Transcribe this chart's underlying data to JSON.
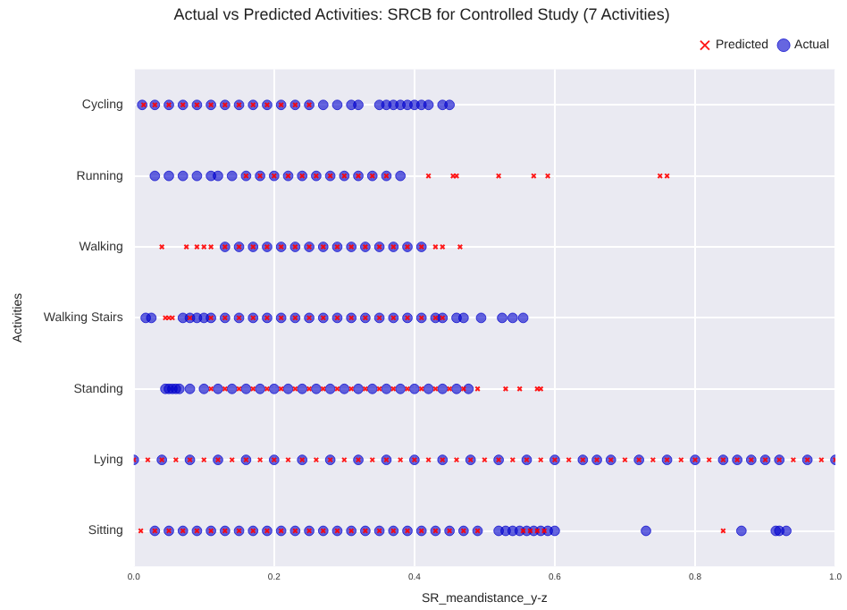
{
  "chart_data": {
    "type": "scatter",
    "title": "Actual vs Predicted Activities: SRCB for Controlled Study (7 Activities)",
    "xlabel": "SR_meandistance_y-z",
    "ylabel": "Activities",
    "categories": [
      "Cycling",
      "Running",
      "Walking",
      "Walking Stairs",
      "Standing",
      "Lying",
      "Sitting"
    ],
    "xlim": [
      0,
      1
    ],
    "xticks": [
      {
        "value": 0,
        "label": "0.0"
      },
      {
        "value": 0.2,
        "label": "0.2"
      },
      {
        "value": 0.4,
        "label": "0.4"
      },
      {
        "value": 0.6,
        "label": "0.6"
      },
      {
        "value": 0.8,
        "label": "0.8"
      },
      {
        "value": 1,
        "label": "1.0"
      }
    ],
    "grid": true,
    "legend": "top right",
    "orientation": "horizontal",
    "series": [
      {
        "name": "Actual",
        "color": "#0000cc",
        "marker": "circle",
        "values": [
          0.012,
          0.03,
          0.05,
          0.07,
          0.09,
          0.11,
          0.13,
          0.15,
          0.17,
          0.19,
          0.21,
          0.23,
          0.25,
          0.27,
          0.29,
          0.31,
          0.32,
          0.35,
          0.36,
          0.37,
          0.38,
          0.39,
          0.4,
          0.41,
          0.42,
          0.44,
          0.45,
          0.03,
          0.05,
          0.07,
          0.09,
          0.11,
          0.12,
          0.14,
          0.16,
          0.18,
          0.2,
          0.22,
          0.24,
          0.26,
          0.28,
          0.3,
          0.32,
          0.34,
          0.36,
          0.38,
          0.13,
          0.15,
          0.17,
          0.19,
          0.21,
          0.23,
          0.25,
          0.27,
          0.29,
          0.31,
          0.33,
          0.35,
          0.37,
          0.39,
          0.41,
          0.017,
          0.025,
          0.07,
          0.08,
          0.09,
          0.1,
          0.11,
          0.13,
          0.15,
          0.17,
          0.19,
          0.21,
          0.23,
          0.25,
          0.27,
          0.29,
          0.31,
          0.33,
          0.35,
          0.37,
          0.39,
          0.41,
          0.43,
          0.44,
          0.46,
          0.47,
          0.495,
          0.525,
          0.54,
          0.555,
          0.045,
          0.05,
          0.055,
          0.06,
          0.065,
          0.08,
          0.1,
          0.12,
          0.14,
          0.16,
          0.18,
          0.2,
          0.22,
          0.24,
          0.26,
          0.28,
          0.3,
          0.32,
          0.34,
          0.36,
          0.38,
          0.4,
          0.42,
          0.44,
          0.46,
          0.477,
          0,
          0.04,
          0.08,
          0.12,
          0.16,
          0.2,
          0.24,
          0.28,
          0.32,
          0.36,
          0.4,
          0.44,
          0.48,
          0.52,
          0.56,
          0.6,
          0.64,
          0.66,
          0.68,
          0.72,
          0.76,
          0.8,
          0.84,
          0.86,
          0.88,
          0.9,
          0.92,
          0.96,
          1,
          0.03,
          0.05,
          0.07,
          0.09,
          0.11,
          0.13,
          0.15,
          0.17,
          0.19,
          0.21,
          0.23,
          0.25,
          0.27,
          0.29,
          0.31,
          0.33,
          0.35,
          0.37,
          0.39,
          0.41,
          0.43,
          0.45,
          0.47,
          0.49,
          0.52,
          0.53,
          0.54,
          0.55,
          0.56,
          0.57,
          0.58,
          0.59,
          0.6,
          0.73,
          0.866,
          0.915,
          0.92,
          0.93
        ],
        "x": [
          "Cycling",
          "Cycling",
          "Cycling",
          "Cycling",
          "Cycling",
          "Cycling",
          "Cycling",
          "Cycling",
          "Cycling",
          "Cycling",
          "Cycling",
          "Cycling",
          "Cycling",
          "Cycling",
          "Cycling",
          "Cycling",
          "Cycling",
          "Cycling",
          "Cycling",
          "Cycling",
          "Cycling",
          "Cycling",
          "Cycling",
          "Cycling",
          "Cycling",
          "Cycling",
          "Cycling",
          "Running",
          "Running",
          "Running",
          "Running",
          "Running",
          "Running",
          "Running",
          "Running",
          "Running",
          "Running",
          "Running",
          "Running",
          "Running",
          "Running",
          "Running",
          "Running",
          "Running",
          "Running",
          "Running",
          "Walking",
          "Walking",
          "Walking",
          "Walking",
          "Walking",
          "Walking",
          "Walking",
          "Walking",
          "Walking",
          "Walking",
          "Walking",
          "Walking",
          "Walking",
          "Walking",
          "Walking",
          "Walking Stairs",
          "Walking Stairs",
          "Walking Stairs",
          "Walking Stairs",
          "Walking Stairs",
          "Walking Stairs",
          "Walking Stairs",
          "Walking Stairs",
          "Walking Stairs",
          "Walking Stairs",
          "Walking Stairs",
          "Walking Stairs",
          "Walking Stairs",
          "Walking Stairs",
          "Walking Stairs",
          "Walking Stairs",
          "Walking Stairs",
          "Walking Stairs",
          "Walking Stairs",
          "Walking Stairs",
          "Walking Stairs",
          "Walking Stairs",
          "Walking Stairs",
          "Walking Stairs",
          "Walking Stairs",
          "Walking Stairs",
          "Walking Stairs",
          "Walking Stairs",
          "Walking Stairs",
          "Walking Stairs",
          "Standing",
          "Standing",
          "Standing",
          "Standing",
          "Standing",
          "Standing",
          "Standing",
          "Standing",
          "Standing",
          "Standing",
          "Standing",
          "Standing",
          "Standing",
          "Standing",
          "Standing",
          "Standing",
          "Standing",
          "Standing",
          "Standing",
          "Standing",
          "Standing",
          "Standing",
          "Standing",
          "Standing",
          "Standing",
          "Standing",
          "Lying",
          "Lying",
          "Lying",
          "Lying",
          "Lying",
          "Lying",
          "Lying",
          "Lying",
          "Lying",
          "Lying",
          "Lying",
          "Lying",
          "Lying",
          "Lying",
          "Lying",
          "Lying",
          "Lying",
          "Lying",
          "Lying",
          "Lying",
          "Lying",
          "Lying",
          "Lying",
          "Lying",
          "Lying",
          "Lying",
          "Lying",
          "Lying",
          "Lying",
          "Sitting",
          "Sitting",
          "Sitting",
          "Sitting",
          "Sitting",
          "Sitting",
          "Sitting",
          "Sitting",
          "Sitting",
          "Sitting",
          "Sitting",
          "Sitting",
          "Sitting",
          "Sitting",
          "Sitting",
          "Sitting",
          "Sitting",
          "Sitting",
          "Sitting",
          "Sitting",
          "Sitting",
          "Sitting",
          "Sitting",
          "Sitting",
          "Sitting",
          "Sitting",
          "Sitting",
          "Sitting",
          "Sitting",
          "Sitting",
          "Sitting",
          "Sitting",
          "Sitting",
          "Sitting",
          "Sitting",
          "Sitting",
          "Sitting",
          "Sitting"
        ]
      },
      {
        "name": "Predicted",
        "color": "#ff0000",
        "marker": "cross",
        "values": [
          0.014,
          0.03,
          0.05,
          0.07,
          0.09,
          0.11,
          0.13,
          0.15,
          0.17,
          0.19,
          0.21,
          0.23,
          0.25,
          0.16,
          0.18,
          0.2,
          0.22,
          0.24,
          0.26,
          0.28,
          0.3,
          0.32,
          0.34,
          0.36,
          0.42,
          0.455,
          0.46,
          0.52,
          0.57,
          0.59,
          0.75,
          0.76,
          0.04,
          0.075,
          0.09,
          0.1,
          0.11,
          0.13,
          0.15,
          0.17,
          0.19,
          0.21,
          0.23,
          0.25,
          0.27,
          0.29,
          0.31,
          0.33,
          0.35,
          0.37,
          0.39,
          0.41,
          0.43,
          0.44,
          0.465,
          0.045,
          0.05,
          0.055,
          0.08,
          0.11,
          0.13,
          0.15,
          0.17,
          0.19,
          0.21,
          0.23,
          0.25,
          0.27,
          0.29,
          0.31,
          0.33,
          0.35,
          0.37,
          0.39,
          0.41,
          0.43,
          0.44,
          0.11,
          0.13,
          0.15,
          0.17,
          0.19,
          0.21,
          0.23,
          0.25,
          0.27,
          0.29,
          0.31,
          0.33,
          0.35,
          0.37,
          0.39,
          0.41,
          0.43,
          0.45,
          0.47,
          0.49,
          0.53,
          0.55,
          0.575,
          0.58,
          0,
          0.02,
          0.04,
          0.06,
          0.08,
          0.1,
          0.12,
          0.14,
          0.16,
          0.18,
          0.2,
          0.22,
          0.24,
          0.26,
          0.28,
          0.3,
          0.32,
          0.34,
          0.36,
          0.38,
          0.4,
          0.42,
          0.44,
          0.46,
          0.48,
          0.5,
          0.52,
          0.54,
          0.56,
          0.58,
          0.6,
          0.62,
          0.64,
          0.66,
          0.68,
          0.7,
          0.72,
          0.74,
          0.76,
          0.78,
          0.8,
          0.82,
          0.84,
          0.86,
          0.88,
          0.9,
          0.92,
          0.94,
          0.96,
          0.98,
          1,
          0.01,
          0.03,
          0.05,
          0.07,
          0.09,
          0.11,
          0.13,
          0.15,
          0.17,
          0.19,
          0.21,
          0.23,
          0.25,
          0.27,
          0.29,
          0.31,
          0.33,
          0.35,
          0.37,
          0.39,
          0.41,
          0.43,
          0.45,
          0.47,
          0.49,
          0.555,
          0.565,
          0.575,
          0.585,
          0.84
        ],
        "x": [
          "Cycling",
          "Cycling",
          "Cycling",
          "Cycling",
          "Cycling",
          "Cycling",
          "Cycling",
          "Cycling",
          "Cycling",
          "Cycling",
          "Cycling",
          "Cycling",
          "Cycling",
          "Running",
          "Running",
          "Running",
          "Running",
          "Running",
          "Running",
          "Running",
          "Running",
          "Running",
          "Running",
          "Running",
          "Running",
          "Running",
          "Running",
          "Running",
          "Running",
          "Running",
          "Running",
          "Running",
          "Walking",
          "Walking",
          "Walking",
          "Walking",
          "Walking",
          "Walking",
          "Walking",
          "Walking",
          "Walking",
          "Walking",
          "Walking",
          "Walking",
          "Walking",
          "Walking",
          "Walking",
          "Walking",
          "Walking",
          "Walking",
          "Walking",
          "Walking",
          "Walking",
          "Walking",
          "Walking",
          "Walking Stairs",
          "Walking Stairs",
          "Walking Stairs",
          "Walking Stairs",
          "Walking Stairs",
          "Walking Stairs",
          "Walking Stairs",
          "Walking Stairs",
          "Walking Stairs",
          "Walking Stairs",
          "Walking Stairs",
          "Walking Stairs",
          "Walking Stairs",
          "Walking Stairs",
          "Walking Stairs",
          "Walking Stairs",
          "Walking Stairs",
          "Walking Stairs",
          "Walking Stairs",
          "Walking Stairs",
          "Walking Stairs",
          "Walking Stairs",
          "Standing",
          "Standing",
          "Standing",
          "Standing",
          "Standing",
          "Standing",
          "Standing",
          "Standing",
          "Standing",
          "Standing",
          "Standing",
          "Standing",
          "Standing",
          "Standing",
          "Standing",
          "Standing",
          "Standing",
          "Standing",
          "Standing",
          "Standing",
          "Standing",
          "Standing",
          "Standing",
          "Standing",
          "Lying",
          "Lying",
          "Lying",
          "Lying",
          "Lying",
          "Lying",
          "Lying",
          "Lying",
          "Lying",
          "Lying",
          "Lying",
          "Lying",
          "Lying",
          "Lying",
          "Lying",
          "Lying",
          "Lying",
          "Lying",
          "Lying",
          "Lying",
          "Lying",
          "Lying",
          "Lying",
          "Lying",
          "Lying",
          "Lying",
          "Lying",
          "Lying",
          "Lying",
          "Lying",
          "Lying",
          "Lying",
          "Lying",
          "Lying",
          "Lying",
          "Lying",
          "Lying",
          "Lying",
          "Lying",
          "Lying",
          "Lying",
          "Lying",
          "Lying",
          "Lying",
          "Lying",
          "Lying",
          "Lying",
          "Lying",
          "Lying",
          "Lying",
          "Lying",
          "Sitting",
          "Sitting",
          "Sitting",
          "Sitting",
          "Sitting",
          "Sitting",
          "Sitting",
          "Sitting",
          "Sitting",
          "Sitting",
          "Sitting",
          "Sitting",
          "Sitting",
          "Sitting",
          "Sitting",
          "Sitting",
          "Sitting",
          "Sitting",
          "Sitting",
          "Sitting",
          "Sitting",
          "Sitting",
          "Sitting",
          "Sitting",
          "Sitting",
          "Sitting",
          "Sitting",
          "Sitting",
          "Sitting",
          "Sitting"
        ]
      }
    ]
  }
}
